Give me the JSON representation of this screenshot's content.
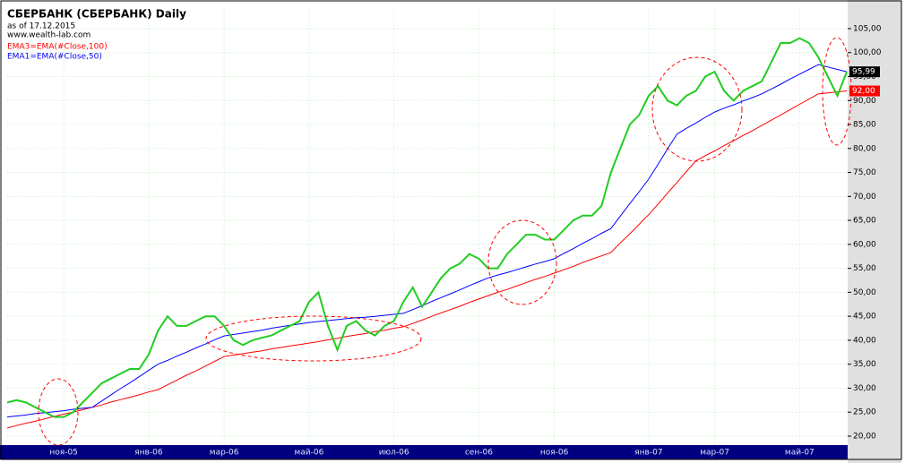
{
  "chart_data": {
    "type": "line",
    "title": "СБЕРБАНК (СБЕРБАНК) Daily",
    "subtitle": "as of 17.12.2015",
    "source": "www.wealth-lab.com",
    "categories": [
      null,
      null,
      null,
      null,
      null,
      null,
      "ноя-05",
      null,
      null,
      null,
      null,
      null,
      null,
      null,
      null,
      "янв-06",
      null,
      null,
      null,
      null,
      null,
      null,
      null,
      "мар-06",
      null,
      null,
      null,
      null,
      null,
      null,
      null,
      null,
      "май-06",
      null,
      null,
      null,
      null,
      null,
      null,
      null,
      null,
      "июл-06",
      null,
      null,
      null,
      null,
      null,
      null,
      null,
      null,
      "сен-06",
      null,
      null,
      null,
      null,
      null,
      null,
      null,
      "ноя-06",
      null,
      null,
      null,
      null,
      null,
      null,
      null,
      null,
      null,
      "янв-07",
      null,
      null,
      null,
      null,
      null,
      null,
      "мар-07",
      null,
      null,
      null,
      null,
      null,
      null,
      null,
      null,
      "май-07",
      null,
      null,
      null,
      null,
      null
    ],
    "series": [
      {
        "name": "EMA3=EMA(#Close,100)",
        "color": "#ff0000",
        "end_label": "92,00",
        "values": [
          21.7,
          22.2,
          22.7,
          23.1,
          23.6,
          24.1,
          24.6,
          25.0,
          25.5,
          26.0,
          26.5,
          27.1,
          27.6,
          28.1,
          28.6,
          29.2,
          29.7,
          30.7,
          31.7,
          32.7,
          33.6,
          34.6,
          35.6,
          36.6,
          36.9,
          37.2,
          37.5,
          37.8,
          38.2,
          38.5,
          38.8,
          39.1,
          39.4,
          39.7,
          40.1,
          40.4,
          40.8,
          41.1,
          41.4,
          41.8,
          42.1,
          42.5,
          42.8,
          43.5,
          44.2,
          45.0,
          45.7,
          46.4,
          47.1,
          47.9,
          48.6,
          49.3,
          50.0,
          50.6,
          51.3,
          52.0,
          52.7,
          53.3,
          54.0,
          54.7,
          55.4,
          56.2,
          56.9,
          57.6,
          58.3,
          60.3,
          62.2,
          64.2,
          66.2,
          68.4,
          70.7,
          72.9,
          75.2,
          77.4,
          78.5,
          79.5,
          80.6,
          81.6,
          82.7,
          83.7,
          84.8,
          85.9,
          87.0,
          88.1,
          89.2,
          90.3,
          91.4,
          91.6,
          91.8,
          92.0
        ]
      },
      {
        "name": "EMA1=EMA(#Close,50)",
        "color": "#0000ff",
        "values": [
          24.0,
          24.2,
          24.4,
          24.7,
          24.9,
          25.1,
          25.3,
          25.6,
          25.8,
          26.0,
          27.3,
          28.6,
          29.9,
          31.1,
          32.4,
          33.7,
          35.0,
          35.8,
          36.7,
          37.5,
          38.4,
          39.2,
          40.1,
          40.9,
          41.2,
          41.5,
          41.8,
          42.1,
          42.5,
          42.8,
          43.1,
          43.4,
          43.7,
          43.9,
          44.1,
          44.3,
          44.5,
          44.7,
          44.8,
          45.0,
          45.2,
          45.4,
          45.6,
          46.4,
          47.2,
          48.1,
          48.9,
          49.7,
          50.5,
          51.4,
          52.2,
          53.0,
          53.6,
          54.1,
          54.7,
          55.3,
          55.9,
          56.4,
          57.0,
          58.1,
          59.1,
          60.2,
          61.2,
          62.3,
          63.3,
          65.9,
          68.5,
          71.0,
          73.6,
          76.7,
          79.9,
          83.0,
          84.2,
          85.3,
          86.5,
          87.6,
          88.4,
          89.1,
          89.9,
          90.6,
          91.4,
          92.4,
          93.4,
          94.5,
          95.5,
          96.5,
          97.5,
          97.0,
          96.5,
          96.0
        ]
      },
      {
        "color": "#22cc22",
        "end_label": "95,99",
        "values": [
          27,
          27.5,
          27,
          26,
          25,
          24,
          24,
          25,
          27,
          29,
          31,
          32,
          33,
          34,
          34,
          37,
          42,
          45,
          43,
          43,
          44,
          45,
          45,
          43,
          40,
          39,
          40,
          40.5,
          41,
          42,
          43,
          44,
          48,
          50,
          43,
          38,
          43,
          44,
          42,
          41,
          43,
          44,
          48,
          51,
          47,
          50,
          53,
          55,
          56,
          58,
          57,
          55,
          55,
          58,
          60,
          62,
          62,
          61,
          61,
          63,
          65,
          66,
          66,
          68,
          75,
          80,
          85,
          87,
          91,
          93,
          90,
          89,
          91,
          92,
          95,
          96,
          92,
          90,
          92,
          93,
          94,
          98,
          102,
          102,
          103,
          102,
          99,
          95,
          91,
          95.99
        ]
      }
    ],
    "ylim": [
      18.13,
      109.1
    ],
    "yticks": [
      {
        "value": 20,
        "label": "20,00"
      },
      {
        "value": 25,
        "label": "25,00"
      },
      {
        "value": 30,
        "label": "30,00"
      },
      {
        "value": 35,
        "label": "35,00"
      },
      {
        "value": 40,
        "label": "40,00"
      },
      {
        "value": 45,
        "label": "45,00"
      },
      {
        "value": 50,
        "label": "50,00"
      },
      {
        "value": 55,
        "label": "55,00"
      },
      {
        "value": 60,
        "label": "60,00"
      },
      {
        "value": 65,
        "label": "65,00"
      },
      {
        "value": 70,
        "label": "70,00"
      },
      {
        "value": 75,
        "label": "75,00"
      },
      {
        "value": 80,
        "label": "80,00"
      },
      {
        "value": 85,
        "label": "85,00"
      },
      {
        "value": 90,
        "label": "90,00"
      },
      {
        "value": 95,
        "label": "95,00"
      },
      {
        "value": 100,
        "label": "100,00"
      },
      {
        "value": 105,
        "label": "105,00"
      }
    ],
    "grid": true
  }
}
